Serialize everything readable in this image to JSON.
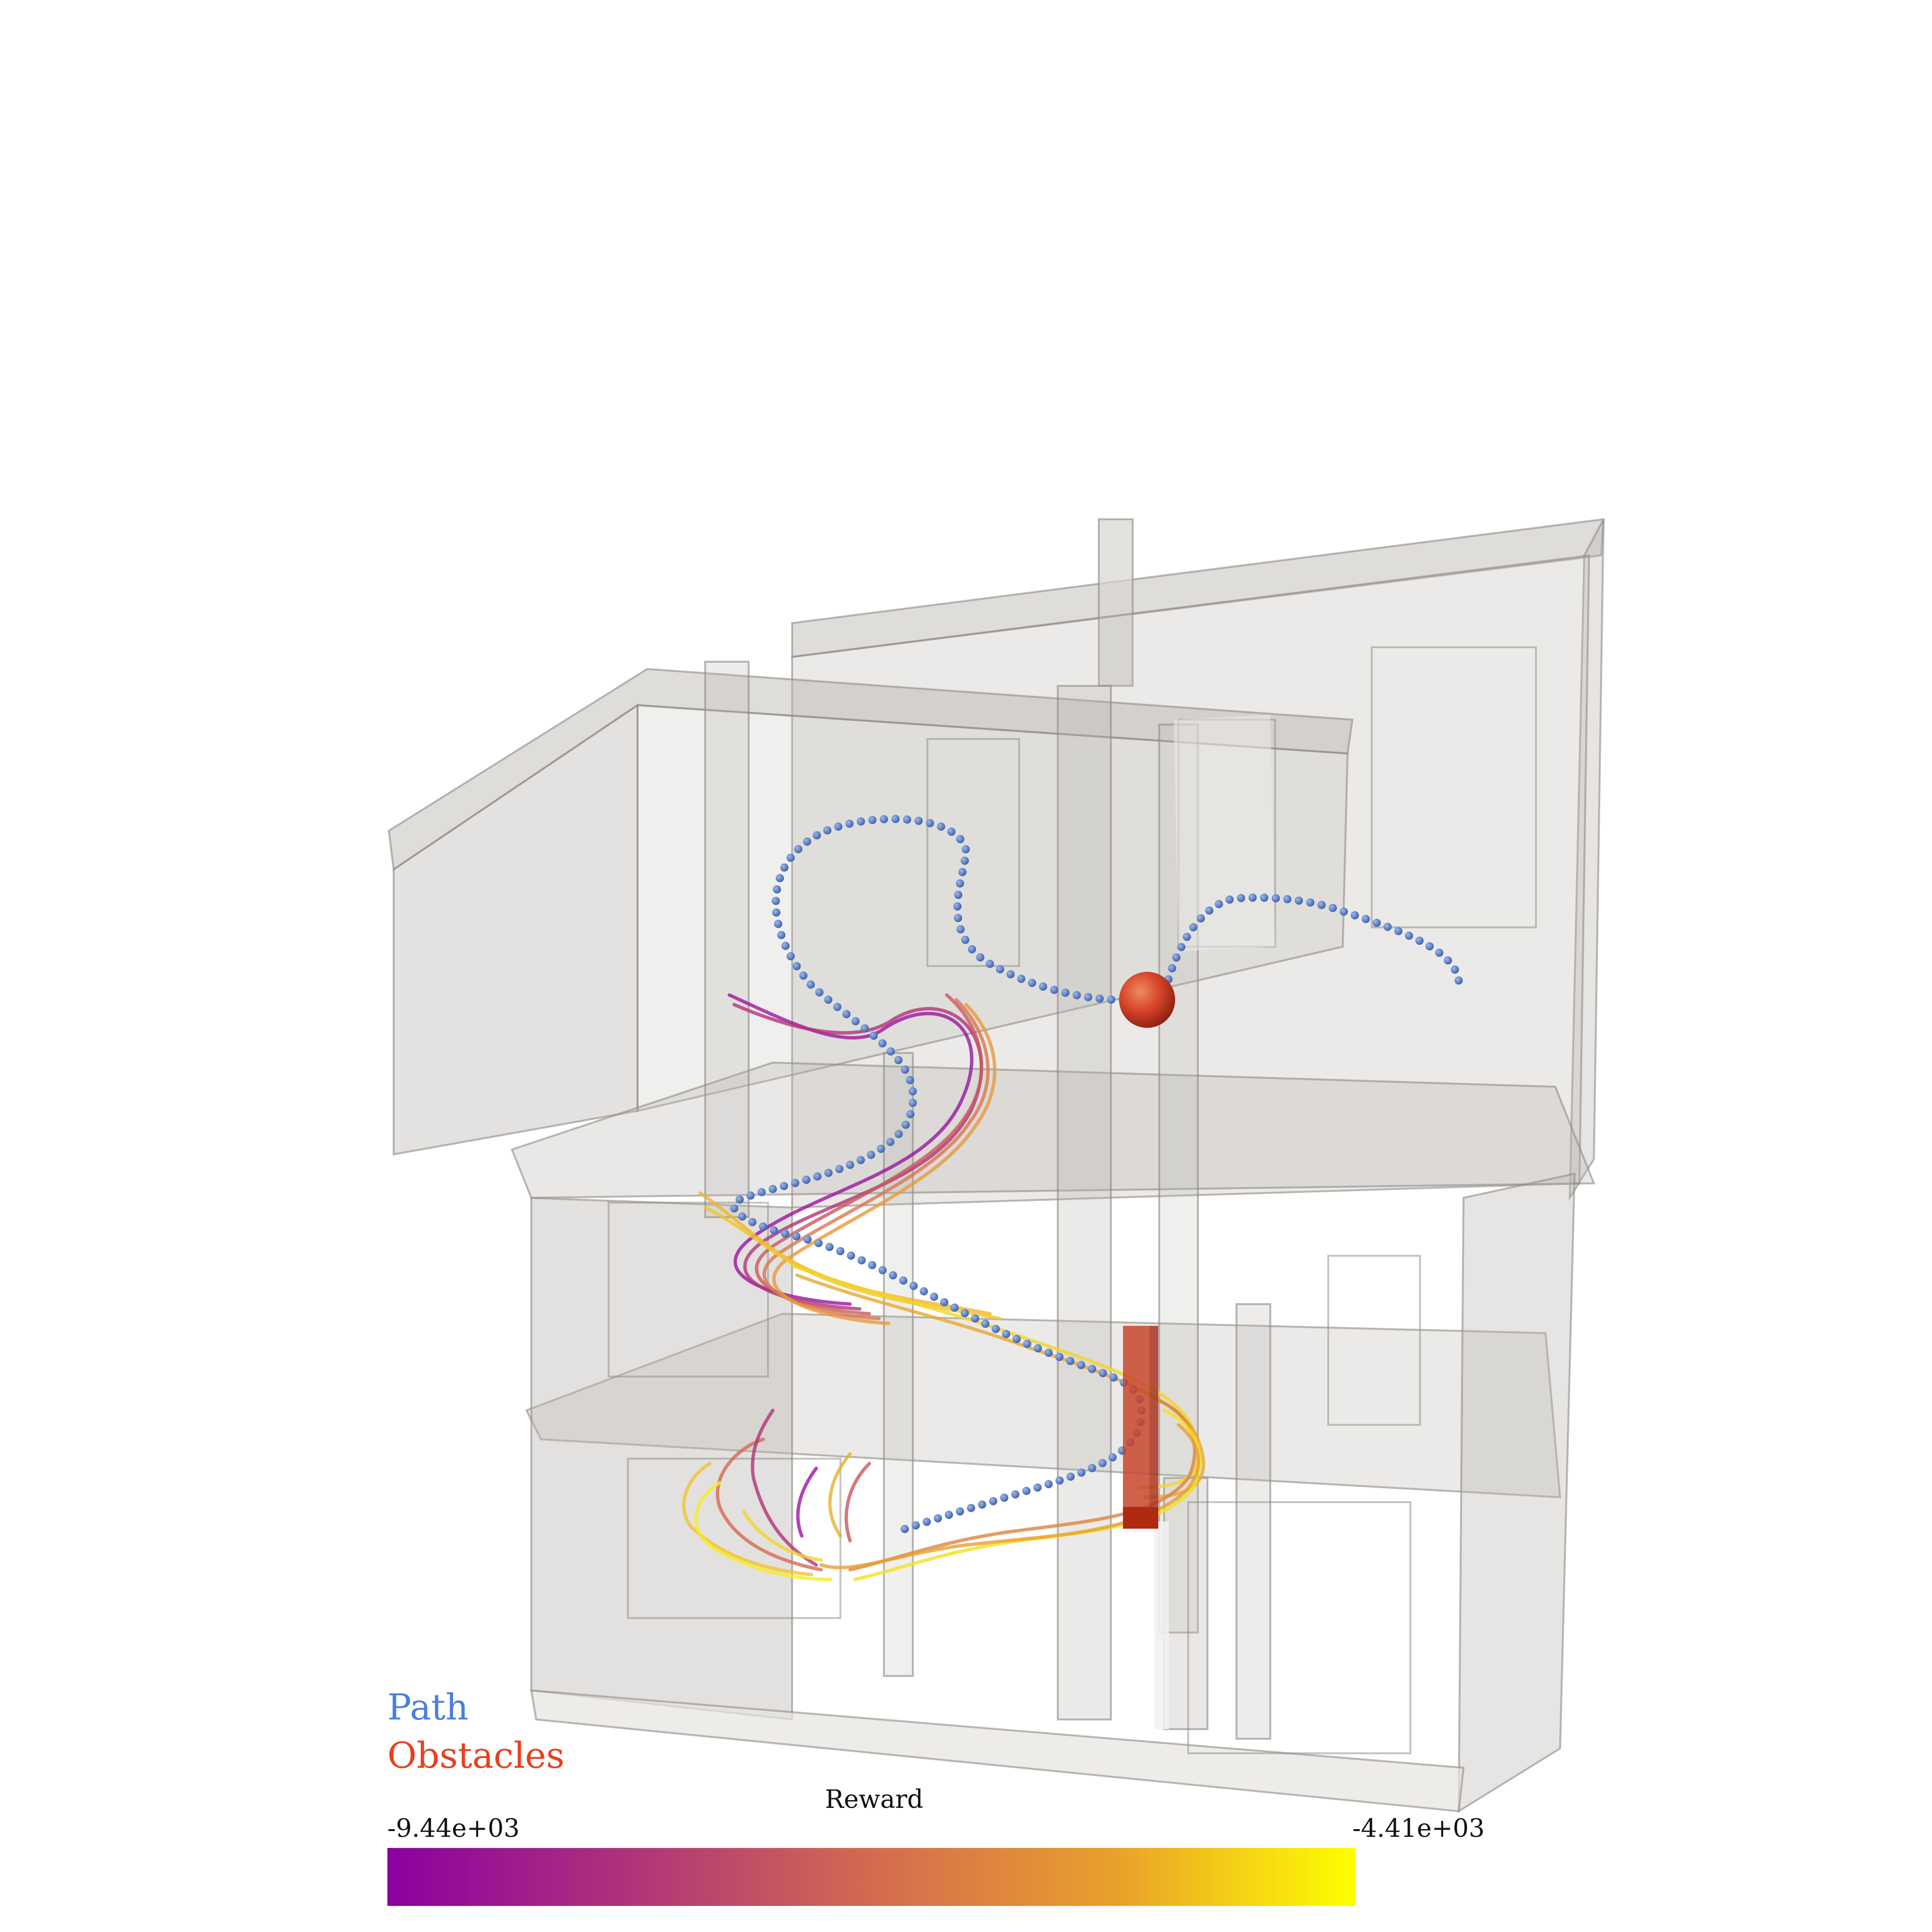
{
  "legend": {
    "path_label": "Path",
    "obstacles_label": "Obstacles",
    "path_color": "#4a7fdc",
    "obstacles_color": "#e8401e"
  },
  "colorbar": {
    "title": "Reward",
    "min_label": "-9.44e+03",
    "max_label": "-4.41e+03",
    "colormap": "plasma",
    "colors": [
      "#8b00a0",
      "#b0337a",
      "#d46a50",
      "#e8a02c",
      "#ffff00"
    ]
  },
  "scene": {
    "building_color": "#b8b4ae",
    "path_marker_color": "#5a7fc4",
    "obstacle_color": "#c8452a"
  }
}
